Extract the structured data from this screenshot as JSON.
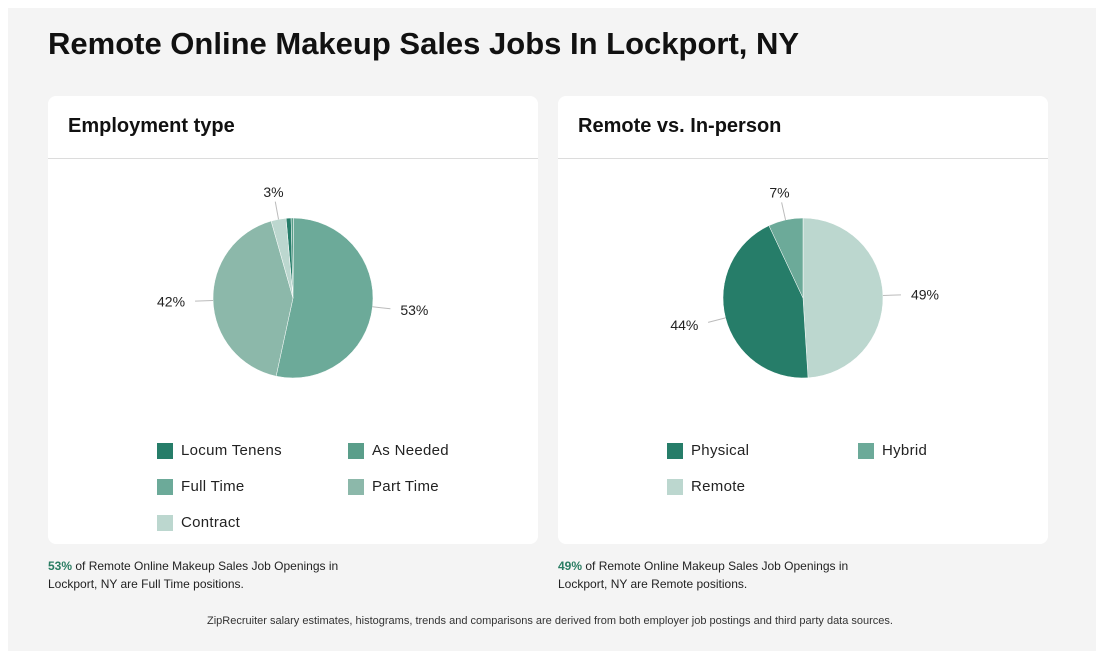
{
  "page": {
    "title": "Remote Online Makeup Sales Jobs In Lockport, NY"
  },
  "employment": {
    "title": "Employment type",
    "caption_highlight": "53%",
    "caption_text": " of Remote Online Makeup Sales Job Openings in Lockport, NY are Full Time positions."
  },
  "remote": {
    "title": "Remote vs. In-person",
    "caption_highlight": "49%",
    "caption_text": " of Remote Online Makeup Sales Job Openings in Lockport, NY are Remote positions."
  },
  "footer": {
    "text": "ZipRecruiter salary estimates, histograms, trends and comparisons are derived from both employer job postings and third party data sources."
  },
  "chart_data": [
    {
      "type": "pie",
      "title": "Employment type",
      "legend_placement": "bottom",
      "slices": [
        {
          "label": "Locum Tenens",
          "value": 1,
          "percent_label": "",
          "color": "#267d69"
        },
        {
          "label": "As Needed",
          "value": 0.5,
          "percent_label": "",
          "color": "#5a9e8a"
        },
        {
          "label": "Full Time",
          "value": 53,
          "percent_label": "53%",
          "color": "#6caa99"
        },
        {
          "label": "Part Time",
          "value": 42,
          "percent_label": "42%",
          "color": "#8cb8aa"
        },
        {
          "label": "Contract",
          "value": 3,
          "percent_label": "3%",
          "color": "#bcd7cf"
        }
      ]
    },
    {
      "type": "pie",
      "title": "Remote vs. In-person",
      "legend_placement": "bottom",
      "slices": [
        {
          "label": "Remote",
          "value": 49,
          "percent_label": "49%",
          "color": "#bcd7cf"
        },
        {
          "label": "Physical",
          "value": 44,
          "percent_label": "44%",
          "color": "#267d69"
        },
        {
          "label": "Hybrid",
          "value": 7,
          "percent_label": "7%",
          "color": "#6caa99"
        }
      ]
    }
  ]
}
